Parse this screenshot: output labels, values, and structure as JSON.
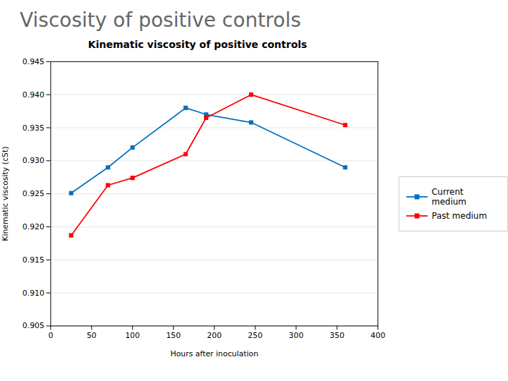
{
  "chart_data": {
    "type": "line",
    "title": "Viscosity of positive controls",
    "subtitle": "Kinematic viscosity of positive controls",
    "x_label": "Hours after inoculation",
    "y_label": "Kinematic viscosity (cSt)",
    "x": [
      25,
      70,
      100,
      165,
      190,
      245,
      360
    ],
    "series": [
      {
        "name": "Current medium",
        "color": "#0070C0",
        "values": [
          0.9251,
          0.929,
          0.932,
          0.938,
          0.937,
          0.9358,
          0.929
        ]
      },
      {
        "name": "Past medium",
        "color": "#FF0000",
        "values": [
          0.9187,
          0.9263,
          0.9274,
          0.931,
          0.9365,
          0.94,
          0.9354
        ]
      }
    ],
    "xlim": [
      0,
      400
    ],
    "xticks": [
      0,
      50,
      100,
      150,
      200,
      250,
      300,
      350,
      400
    ],
    "ylim": [
      0.905,
      0.945
    ],
    "yticks": [
      0.905,
      {
        "value": 0.91,
        "label": "0.910"
      },
      0.915,
      {
        "value": 0.92,
        "label": "0.920"
      },
      0.925,
      {
        "value": 0.93,
        "label": "0.930"
      },
      0.935,
      {
        "value": 0.94,
        "label": "0.940"
      },
      0.945
    ],
    "grid": true,
    "legend": "right",
    "marker": "square"
  }
}
